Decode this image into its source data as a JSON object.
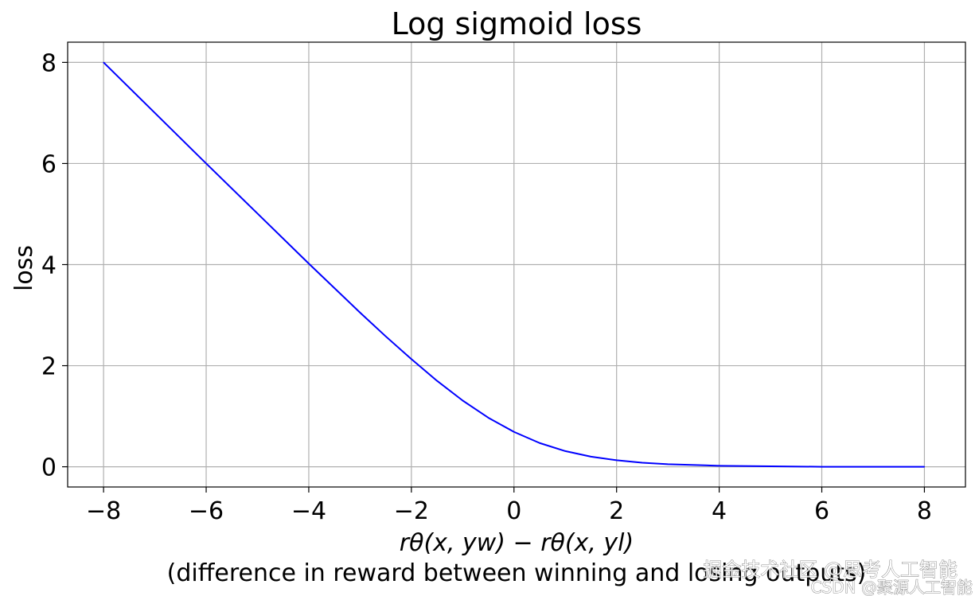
{
  "chart_data": {
    "type": "line",
    "title": "Log sigmoid loss",
    "xlabel_line1": "rθ(x, yw) − rθ(x, yl)",
    "xlabel_line2": "(difference in reward between winning and losing outputs)",
    "ylabel": "loss",
    "xlim": [
      -8.7,
      8.8
    ],
    "ylim": [
      -0.4,
      8.4
    ],
    "grid": true,
    "x_ticks": [
      -8,
      -6,
      -4,
      -2,
      0,
      2,
      4,
      6,
      8
    ],
    "x_tick_labels": [
      "−8",
      "−6",
      "−4",
      "−2",
      "0",
      "2",
      "4",
      "6",
      "8"
    ],
    "y_ticks": [
      0,
      2,
      4,
      6,
      8
    ],
    "y_tick_labels": [
      "0",
      "2",
      "4",
      "6",
      "8"
    ],
    "series": [
      {
        "color": "#0000ff",
        "x": [
          -8,
          -7,
          -6,
          -5,
          -4,
          -3,
          -2.5,
          -2,
          -1.5,
          -1,
          -0.5,
          0,
          0.5,
          1,
          1.5,
          2,
          2.5,
          3,
          4,
          5,
          6,
          7,
          8
        ],
        "y": [
          8.0,
          7.0,
          6.0,
          5.01,
          4.02,
          3.05,
          2.58,
          2.13,
          1.7,
          1.31,
          0.97,
          0.69,
          0.47,
          0.31,
          0.2,
          0.13,
          0.08,
          0.05,
          0.02,
          0.01,
          0.0,
          0.0,
          0.0
        ]
      }
    ]
  },
  "watermark": {
    "line1": "掘金技术社区 @思考人工智能",
    "line2": "CSDN @聚源人工智能"
  }
}
